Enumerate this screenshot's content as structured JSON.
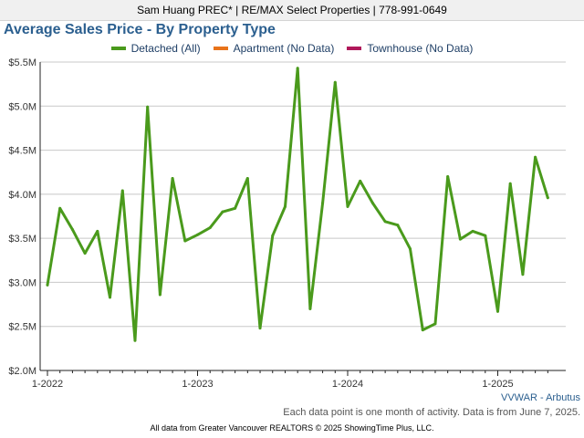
{
  "header": {
    "banner": "Sam Huang PREC* | RE/MAX Select Properties | 778-991-0649",
    "region": "VVWAR - Arbutus",
    "note": "Each data point is one month of activity. Data is from June 7, 2025.",
    "credit": "All data from Greater Vancouver REALTORS © 2025 ShowingTime Plus, LLC."
  },
  "chart_data": {
    "type": "line",
    "title": "Average Sales Price - By Property Type",
    "xlabel": "",
    "ylabel": "",
    "ylim": [
      2.0,
      5.5
    ],
    "y_unit": "$M",
    "y_ticks": [
      {
        "value": 2.0,
        "label": "$2.0M"
      },
      {
        "value": 2.5,
        "label": "$2.5M"
      },
      {
        "value": 3.0,
        "label": "$3.0M"
      },
      {
        "value": 3.5,
        "label": "$3.5M"
      },
      {
        "value": 4.0,
        "label": "$4.0M"
      },
      {
        "value": 4.5,
        "label": "$4.5M"
      },
      {
        "value": 5.0,
        "label": "$5.0M"
      },
      {
        "value": 5.5,
        "label": "$5.5M"
      }
    ],
    "x_ticks": [
      {
        "month": "2022-01",
        "label": "1-2022"
      },
      {
        "month": "2023-01",
        "label": "1-2023"
      },
      {
        "month": "2024-01",
        "label": "1-2024"
      },
      {
        "month": "2025-01",
        "label": "1-2025"
      }
    ],
    "x_range": [
      "2022-01",
      "2025-05"
    ],
    "grid": "horizontal",
    "legend_position": "top",
    "series": [
      {
        "name": "Detached (All)",
        "color": "#4a9a1c",
        "x": [
          "2022-01",
          "2022-02",
          "2022-03",
          "2022-04",
          "2022-05",
          "2022-06",
          "2022-07",
          "2022-08",
          "2022-09",
          "2022-10",
          "2022-11",
          "2022-12",
          "2023-01",
          "2023-02",
          "2023-03",
          "2023-04",
          "2023-05",
          "2023-06",
          "2023-07",
          "2023-08",
          "2023-09",
          "2023-10",
          "2023-11",
          "2023-12",
          "2024-01",
          "2024-02",
          "2024-03",
          "2024-04",
          "2024-05",
          "2024-06",
          "2024-07",
          "2024-08",
          "2024-09",
          "2024-10",
          "2024-11",
          "2024-12",
          "2025-01",
          "2025-02",
          "2025-03",
          "2025-04",
          "2025-05"
        ],
        "values": [
          2.97,
          3.84,
          3.6,
          3.33,
          3.58,
          2.83,
          4.04,
          2.34,
          4.99,
          2.86,
          4.18,
          3.47,
          3.54,
          3.62,
          3.8,
          3.84,
          4.18,
          2.48,
          3.53,
          3.86,
          5.43,
          2.7,
          3.9,
          5.27,
          3.86,
          4.15,
          3.9,
          3.69,
          3.65,
          3.38,
          2.46,
          2.53,
          4.2,
          3.49,
          3.58,
          3.53,
          2.67,
          4.12,
          3.09,
          4.42,
          3.96
        ]
      },
      {
        "name": "Apartment (No Data)",
        "color": "#e8731a",
        "x": [],
        "values": []
      },
      {
        "name": "Townhouse (No Data)",
        "color": "#b0185a",
        "x": [],
        "values": []
      }
    ]
  }
}
